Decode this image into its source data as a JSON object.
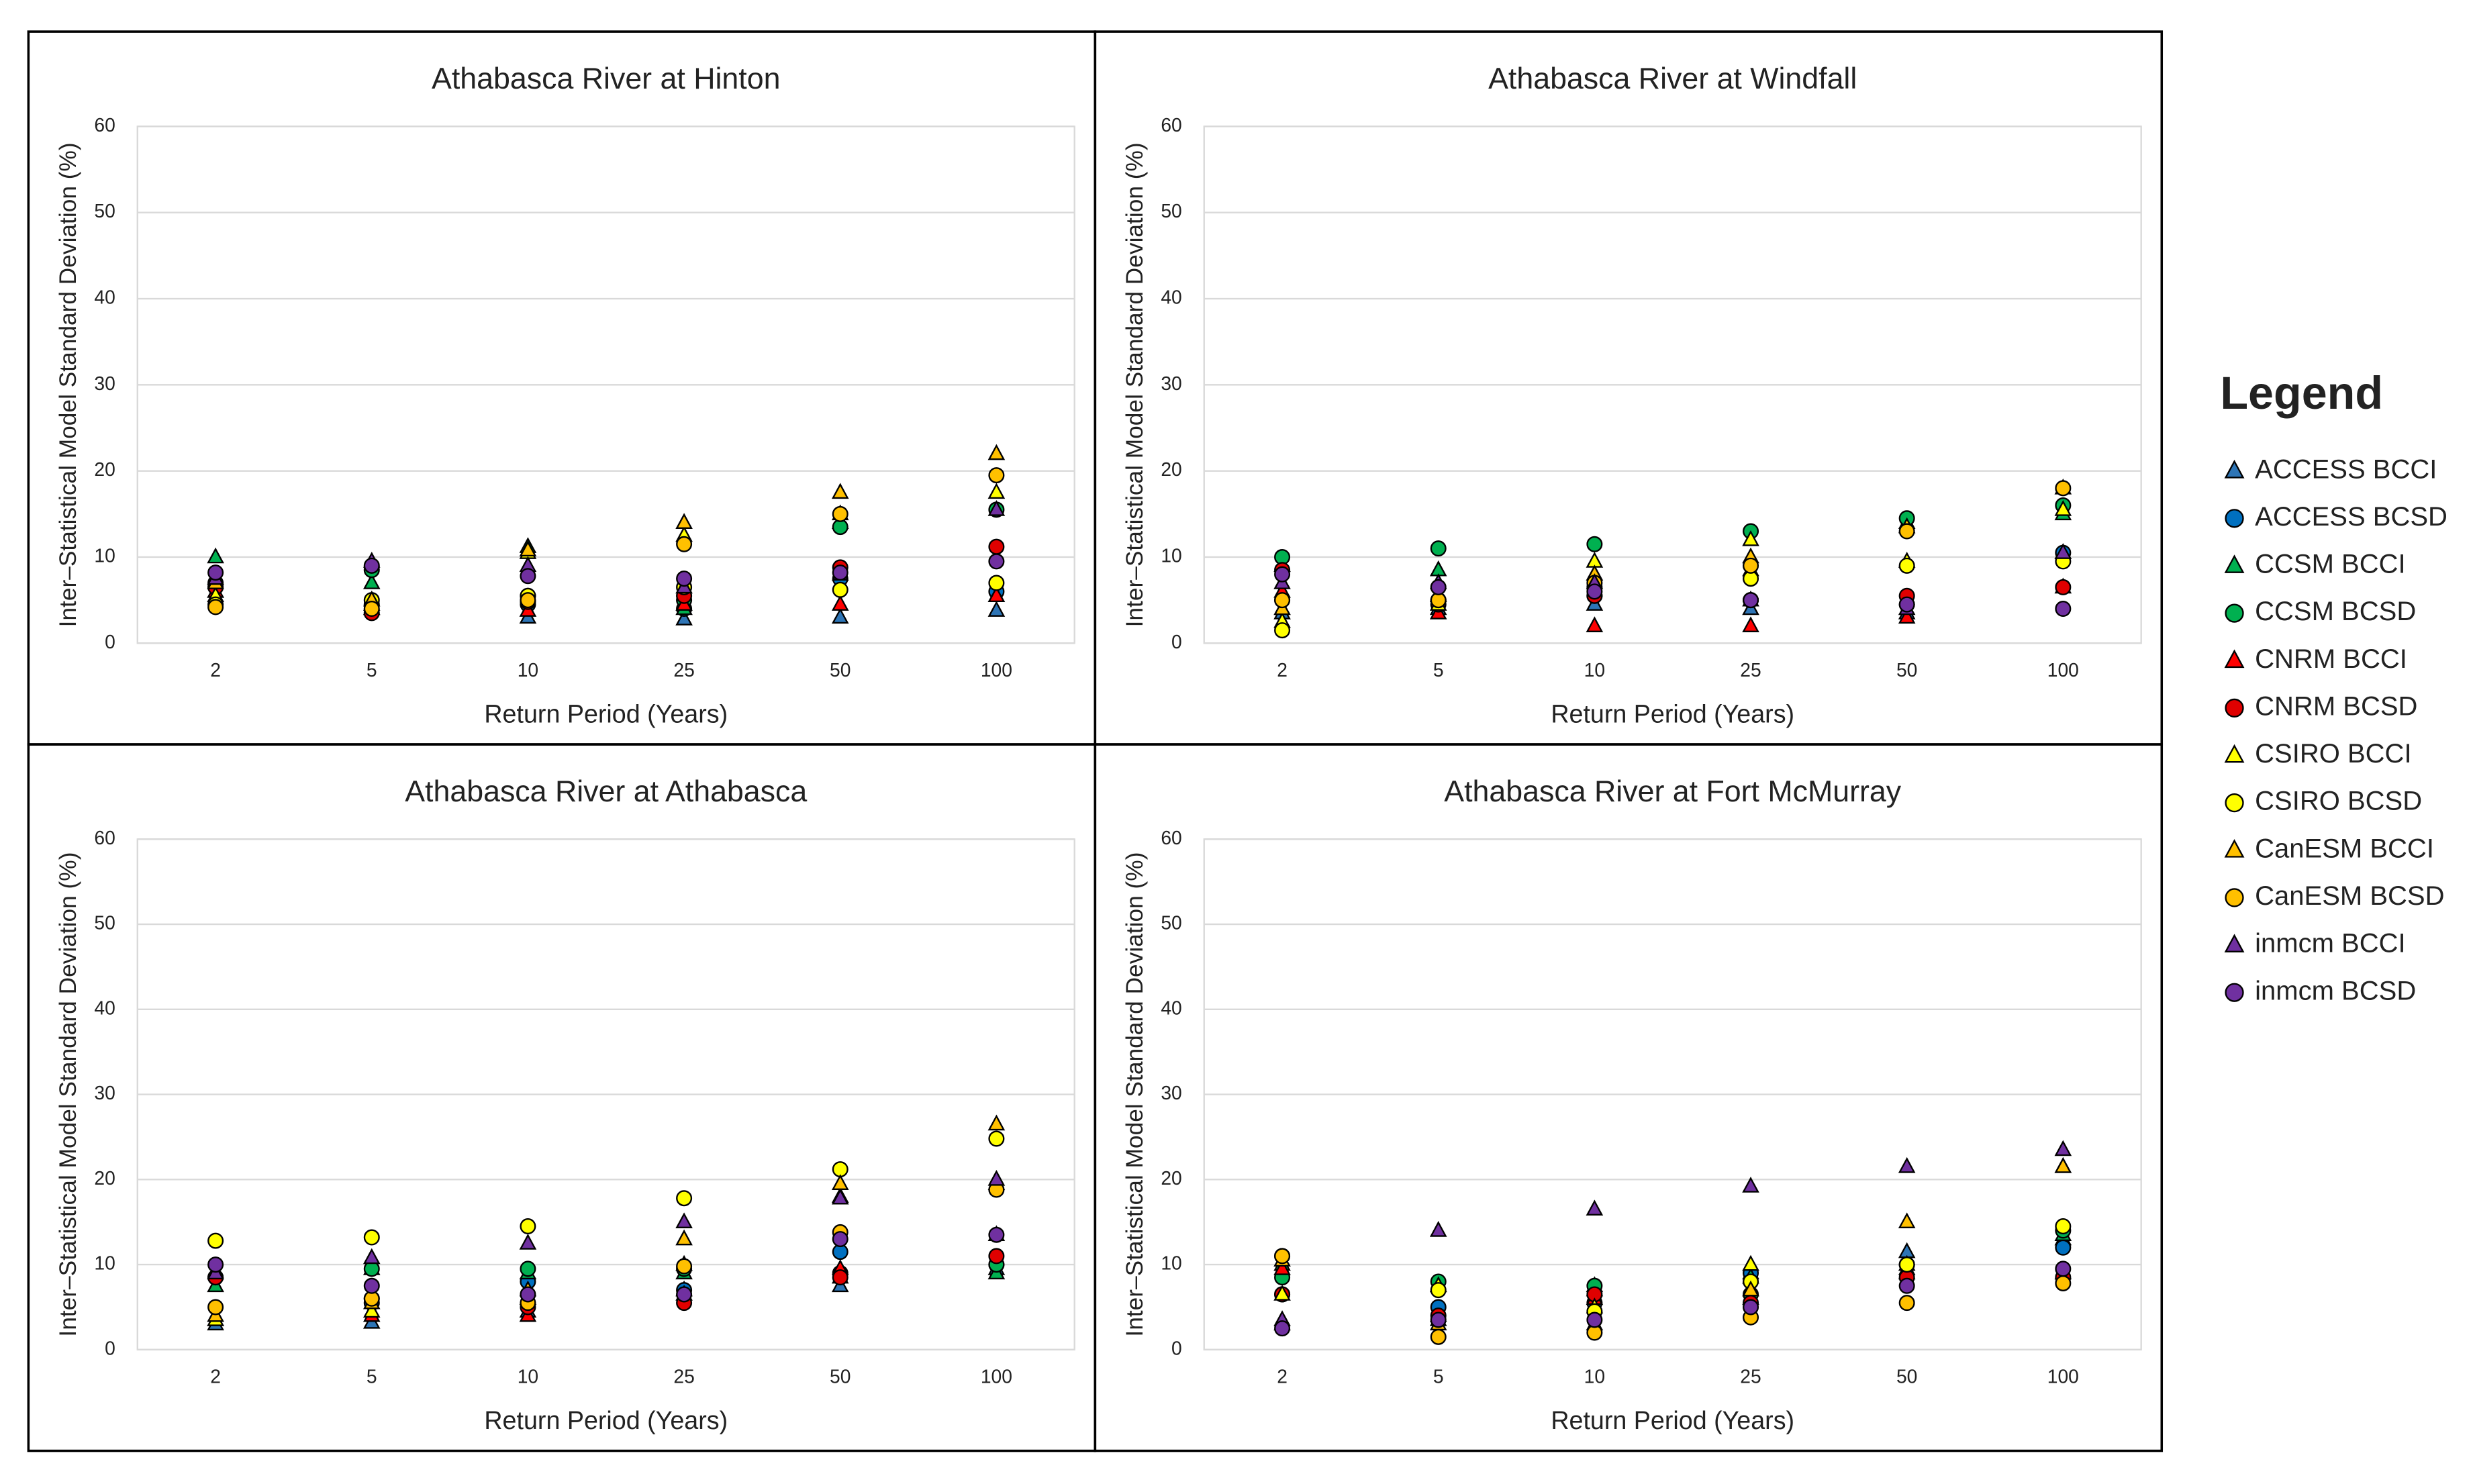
{
  "chart_data": [
    {
      "type": "scatter",
      "title": "Athabasca River at Hinton",
      "x_label": "Return Period (Years)",
      "y_label": "Inter–Statistical Model Standard Deviation (%)",
      "categories": [
        "2",
        "5",
        "10",
        "25",
        "50",
        "100"
      ],
      "ylim": [
        0,
        60
      ],
      "yticks": [
        0,
        10,
        20,
        30,
        40,
        50,
        60
      ],
      "grid": true,
      "legend_title": "Legend",
      "series": [
        {
          "name": "ACCESS BCCI",
          "color": "#2e75b6",
          "marker": "triangle",
          "values": [
            6,
            4,
            3,
            2.8,
            3,
            3.8
          ]
        },
        {
          "name": "ACCESS BCSD",
          "color": "#0070c0",
          "marker": "circle",
          "values": [
            6.5,
            4.5,
            4.5,
            4,
            7.5,
            6
          ]
        },
        {
          "name": "CCSM BCCI",
          "color": "#00b050",
          "marker": "triangle",
          "values": [
            10,
            7,
            11.2,
            4,
            14,
            5.5
          ]
        },
        {
          "name": "CCSM BCSD",
          "color": "#00b050",
          "marker": "circle",
          "values": [
            7,
            8.5,
            5.5,
            5,
            13.5,
            15.5
          ]
        },
        {
          "name": "CNRM BCCI",
          "color": "#ff0000",
          "marker": "triangle",
          "values": [
            6,
            4,
            3.8,
            4.5,
            4.5,
            5.5
          ]
        },
        {
          "name": "CNRM BCSD",
          "color": "#e00000",
          "marker": "circle",
          "values": [
            6.5,
            3.5,
            4.8,
            5.5,
            8.8,
            11.2
          ]
        },
        {
          "name": "CSIRO BCCI",
          "color": "#ffff00",
          "marker": "triangle",
          "values": [
            5.5,
            4.5,
            10.5,
            12.5,
            15,
            17.5
          ]
        },
        {
          "name": "CSIRO BCSD",
          "color": "#ffff00",
          "marker": "circle",
          "values": [
            4.5,
            5,
            5.5,
            6.5,
            6.2,
            7
          ]
        },
        {
          "name": "CanESM BCCI",
          "color": "#ffc000",
          "marker": "triangle",
          "values": [
            7,
            5,
            10.8,
            14,
            17.5,
            22
          ]
        },
        {
          "name": "CanESM BCSD",
          "color": "#ffc000",
          "marker": "circle",
          "values": [
            4.2,
            4,
            5,
            11.5,
            15,
            19.5
          ]
        },
        {
          "name": "inmcm BCCI",
          "color": "#7030a0",
          "marker": "triangle",
          "values": [
            7.5,
            9.5,
            9,
            6.5,
            8,
            15.5
          ]
        },
        {
          "name": "inmcm BCSD",
          "color": "#7030a0",
          "marker": "circle",
          "values": [
            8.2,
            9,
            7.8,
            7.5,
            8.2,
            9.5
          ]
        }
      ]
    },
    {
      "type": "scatter",
      "title": "Athabasca River at Windfall",
      "x_label": "Return Period (Years)",
      "y_label": "Inter–Statistical Model Standard Deviation (%)",
      "categories": [
        "2",
        "5",
        "10",
        "25",
        "50",
        "100"
      ],
      "ylim": [
        0,
        60
      ],
      "yticks": [
        0,
        10,
        20,
        30,
        40,
        50,
        60
      ],
      "grid": true,
      "series": [
        {
          "name": "ACCESS BCCI",
          "color": "#2e75b6",
          "marker": "triangle",
          "values": [
            3.5,
            4,
            4.5,
            4,
            3.5,
            10.5
          ]
        },
        {
          "name": "ACCESS BCSD",
          "color": "#0070c0",
          "marker": "circle",
          "values": [
            5,
            5,
            5.5,
            5,
            4.5,
            10.5
          ]
        },
        {
          "name": "CCSM BCCI",
          "color": "#00b050",
          "marker": "triangle",
          "values": [
            9,
            8.5,
            8,
            8.5,
            14,
            15
          ]
        },
        {
          "name": "CCSM BCSD",
          "color": "#00b050",
          "marker": "circle",
          "values": [
            10,
            11,
            11.5,
            13,
            14.5,
            16
          ]
        },
        {
          "name": "CNRM BCCI",
          "color": "#ff0000",
          "marker": "triangle",
          "values": [
            6,
            3.5,
            2,
            2,
            3,
            6.5
          ]
        },
        {
          "name": "CNRM BCSD",
          "color": "#e00000",
          "marker": "circle",
          "values": [
            8.5,
            4.5,
            5.5,
            5,
            5.5,
            6.5
          ]
        },
        {
          "name": "CSIRO BCCI",
          "color": "#ffff00",
          "marker": "triangle",
          "values": [
            2.5,
            4.5,
            9.5,
            12,
            9.5,
            15.5
          ]
        },
        {
          "name": "CSIRO BCSD",
          "color": "#ffff00",
          "marker": "circle",
          "values": [
            1.5,
            5,
            6.5,
            7.5,
            9,
            9.5
          ]
        },
        {
          "name": "CanESM BCCI",
          "color": "#ffc000",
          "marker": "triangle",
          "values": [
            4,
            5.5,
            8,
            10,
            13.5,
            18
          ]
        },
        {
          "name": "CanESM BCSD",
          "color": "#ffc000",
          "marker": "circle",
          "values": [
            5,
            5,
            7,
            9,
            13,
            18
          ]
        },
        {
          "name": "inmcm BCCI",
          "color": "#7030a0",
          "marker": "triangle",
          "values": [
            7,
            7,
            7,
            5,
            4,
            10.5
          ]
        },
        {
          "name": "inmcm BCSD",
          "color": "#7030a0",
          "marker": "circle",
          "values": [
            8,
            6.5,
            6,
            5,
            4.5,
            4
          ]
        }
      ]
    },
    {
      "type": "scatter",
      "title": "Athabasca River at Athabasca",
      "x_label": "Return Period (Years)",
      "y_label": "Inter–Statistical Model Standard Deviation (%)",
      "categories": [
        "2",
        "5",
        "10",
        "25",
        "50",
        "100"
      ],
      "ylim": [
        0,
        60
      ],
      "yticks": [
        0,
        10,
        20,
        30,
        40,
        50,
        60
      ],
      "grid": true,
      "series": [
        {
          "name": "ACCESS BCCI",
          "color": "#2e75b6",
          "marker": "triangle",
          "values": [
            3,
            3.2,
            4.5,
            7,
            7.5,
            9.5
          ]
        },
        {
          "name": "ACCESS BCSD",
          "color": "#0070c0",
          "marker": "circle",
          "values": [
            8.5,
            5.5,
            8,
            7,
            11.5,
            10
          ]
        },
        {
          "name": "CCSM BCCI",
          "color": "#00b050",
          "marker": "triangle",
          "values": [
            7.5,
            9.5,
            9,
            9,
            8.5,
            9
          ]
        },
        {
          "name": "CCSM BCSD",
          "color": "#00b050",
          "marker": "circle",
          "values": [
            8.5,
            9.5,
            9.5,
            9.5,
            9,
            10
          ]
        },
        {
          "name": "CNRM BCCI",
          "color": "#ff0000",
          "marker": "triangle",
          "values": [
            3.5,
            4,
            4,
            6.5,
            9.5,
            13.5
          ]
        },
        {
          "name": "CNRM BCSD",
          "color": "#e00000",
          "marker": "circle",
          "values": [
            8.5,
            6,
            5,
            5.5,
            8.5,
            11
          ]
        },
        {
          "name": "CSIRO BCCI",
          "color": "#ffff00",
          "marker": "triangle",
          "values": [
            3.5,
            4.5,
            6,
            10,
            18,
            19.5
          ]
        },
        {
          "name": "CSIRO BCSD",
          "color": "#ffff00",
          "marker": "circle",
          "values": [
            12.8,
            13.2,
            14.5,
            17.8,
            21.2,
            24.8
          ]
        },
        {
          "name": "CanESM BCCI",
          "color": "#ffc000",
          "marker": "triangle",
          "values": [
            4,
            5.5,
            7,
            13,
            19.5,
            26.5
          ]
        },
        {
          "name": "CanESM BCSD",
          "color": "#ffc000",
          "marker": "circle",
          "values": [
            5,
            6,
            5.5,
            9.8,
            13.8,
            18.8
          ]
        },
        {
          "name": "inmcm BCCI",
          "color": "#7030a0",
          "marker": "triangle",
          "values": [
            9,
            10.8,
            12.5,
            15,
            17.8,
            20
          ]
        },
        {
          "name": "inmcm BCSD",
          "color": "#7030a0",
          "marker": "circle",
          "values": [
            10,
            7.5,
            6.5,
            6.5,
            13,
            13.5
          ]
        }
      ]
    },
    {
      "type": "scatter",
      "title": "Athabasca River at Fort McMurray",
      "x_label": "Return Period (Years)",
      "y_label": "Inter–Statistical Model Standard Deviation (%)",
      "categories": [
        "2",
        "5",
        "10",
        "25",
        "50",
        "100"
      ],
      "ylim": [
        0,
        60
      ],
      "yticks": [
        0,
        10,
        20,
        30,
        40,
        50,
        60
      ],
      "grid": true,
      "series": [
        {
          "name": "ACCESS BCCI",
          "color": "#2e75b6",
          "marker": "triangle",
          "values": [
            3,
            4,
            7,
            9,
            11.5,
            13
          ]
        },
        {
          "name": "ACCESS BCSD",
          "color": "#0070c0",
          "marker": "circle",
          "values": [
            6.5,
            5,
            5.5,
            9,
            10,
            12
          ]
        },
        {
          "name": "CCSM BCCI",
          "color": "#00b050",
          "marker": "triangle",
          "values": [
            10,
            7.5,
            7.5,
            8.5,
            9.5,
            13.5
          ]
        },
        {
          "name": "CCSM BCSD",
          "color": "#00b050",
          "marker": "circle",
          "values": [
            8.5,
            8,
            7.5,
            6.5,
            10,
            14
          ]
        },
        {
          "name": "CNRM BCCI",
          "color": "#ff0000",
          "marker": "triangle",
          "values": [
            9.5,
            3.5,
            6,
            6,
            9,
            9
          ]
        },
        {
          "name": "CNRM BCSD",
          "color": "#e00000",
          "marker": "circle",
          "values": [
            6.5,
            4,
            6.5,
            5.5,
            8.5,
            8.5
          ]
        },
        {
          "name": "CSIRO BCCI",
          "color": "#ffff00",
          "marker": "triangle",
          "values": [
            6.5,
            7.5,
            5,
            10,
            10,
            21.5
          ]
        },
        {
          "name": "CSIRO BCSD",
          "color": "#ffff00",
          "marker": "circle",
          "values": [
            11,
            7,
            4.5,
            8,
            10,
            14.5
          ]
        },
        {
          "name": "CanESM BCCI",
          "color": "#ffc000",
          "marker": "triangle",
          "values": [
            10.5,
            3,
            3,
            7,
            15,
            21.5
          ]
        },
        {
          "name": "CanESM BCSD",
          "color": "#ffc000",
          "marker": "circle",
          "values": [
            11,
            1.5,
            2,
            3.8,
            5.5,
            7.8
          ]
        },
        {
          "name": "inmcm BCCI",
          "color": "#7030a0",
          "marker": "triangle",
          "values": [
            3.5,
            14,
            16.5,
            19.2,
            21.5,
            23.5
          ]
        },
        {
          "name": "inmcm BCSD",
          "color": "#7030a0",
          "marker": "circle",
          "values": [
            2.5,
            3.5,
            3.5,
            5,
            7.5,
            9.5
          ]
        }
      ]
    }
  ]
}
